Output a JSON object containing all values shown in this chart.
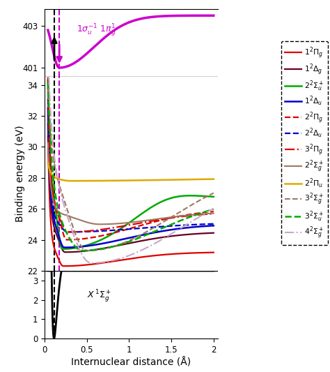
{
  "xlabel": "Internuclear distance (Å)",
  "ylabel": "Binding energy (eV)",
  "vline_black": 0.115,
  "vline_purple": 0.175,
  "upper_ylim": [
    400.55,
    403.8
  ],
  "middle_ylim": [
    22.0,
    34.5
  ],
  "lower_ylim": [
    0,
    3.5
  ],
  "xlim": [
    0.0,
    2.05
  ],
  "upper_yticks": [
    401,
    403
  ],
  "middle_yticks": [
    22,
    24,
    26,
    28,
    30,
    32,
    34
  ],
  "lower_yticks": [
    0,
    1,
    2,
    3
  ],
  "purple_color": "#cc00cc",
  "black_color": "#000000",
  "curves": [
    {
      "color": "#dd0000",
      "ls": "-",
      "lw": 1.6
    },
    {
      "color": "#660022",
      "ls": "-",
      "lw": 1.6
    },
    {
      "color": "#00aa00",
      "ls": "-",
      "lw": 1.8
    },
    {
      "color": "#0000cc",
      "ls": "-",
      "lw": 1.8
    },
    {
      "color": "#dd0000",
      "ls": "--",
      "lw": 1.6
    },
    {
      "color": "#0000cc",
      "ls": "--",
      "lw": 1.6
    },
    {
      "color": "#dd0000",
      "ls": "-.",
      "lw": 1.6
    },
    {
      "color": "#a07860",
      "ls": "-",
      "lw": 1.5
    },
    {
      "color": "#ddaa00",
      "ls": "-",
      "lw": 1.8
    },
    {
      "color": "#a07860",
      "ls": "--",
      "lw": 1.5
    },
    {
      "color": "#00aa00",
      "ls": "--",
      "lw": 1.8
    },
    {
      "color": "#c8a8c8",
      "ls": "-.",
      "lw": 1.5
    }
  ],
  "legend_labels": [
    "1$^2\\Pi_g$",
    "1$^2\\Delta_g$",
    "2$^2\\Sigma_u^+$",
    "1$^2\\Delta_u$",
    "2$^2\\Pi_g$",
    "2$^2\\Delta_u$",
    "3$^2\\Pi_g$",
    "2$^2\\Sigma_g^+$",
    "2$^2\\Pi_u$",
    "3$^2\\Sigma_g^+$",
    "3$^2\\Sigma_u^+$",
    "4$^2\\Sigma_g^+$"
  ]
}
